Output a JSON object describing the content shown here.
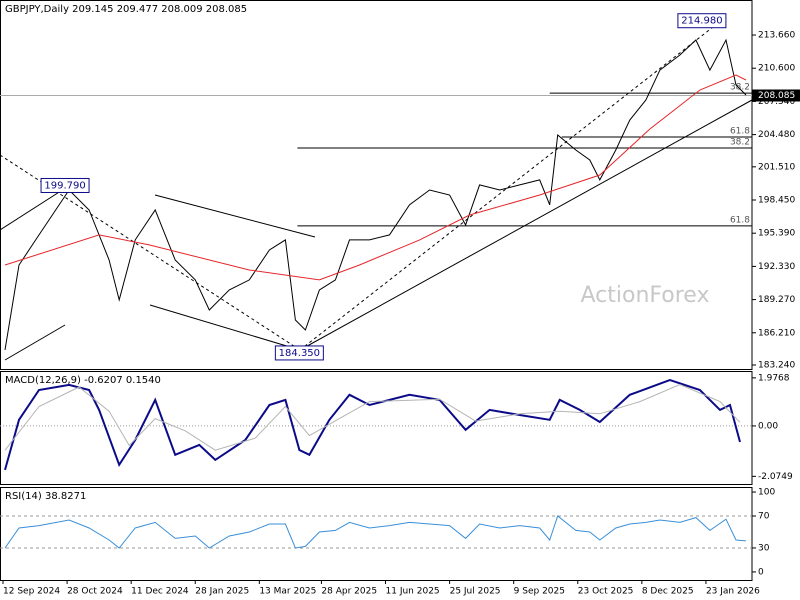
{
  "chart_data": [
    {
      "type": "line",
      "title": "GBPJPY,Daily 209.145 209.477 208.009 208.085",
      "watermark": "ActionForex",
      "xlim": [
        0,
        374
      ],
      "xticks": [
        {
          "value": 0,
          "label": "12 Sep 2024"
        },
        {
          "value": 32,
          "label": "28 Oct 2024"
        },
        {
          "value": 64,
          "label": "11 Dec 2024"
        },
        {
          "value": 96,
          "label": "28 Jan 2025"
        },
        {
          "value": 128,
          "label": "13 Mar 2025"
        },
        {
          "value": 159,
          "label": "28 Apr 2025"
        },
        {
          "value": 191,
          "label": "11 Jun 2025"
        },
        {
          "value": 223,
          "label": "25 Jul 2025"
        },
        {
          "value": 255,
          "label": "9 Sep 2025"
        },
        {
          "value": 287,
          "label": "23 Oct 2025"
        },
        {
          "value": 319,
          "label": "8 Dec 2025"
        },
        {
          "value": 351,
          "label": "23 Jan 2026"
        }
      ],
      "ylim": [
        182.87,
        216.89
      ],
      "yticks": [
        {
          "value": 213.66,
          "label": "213.660"
        },
        {
          "value": 210.6,
          "label": "210.600"
        },
        {
          "value": 207.54,
          "label": "207.540"
        },
        {
          "value": 204.48,
          "label": "204.480"
        },
        {
          "value": 201.51,
          "label": "201.510"
        },
        {
          "value": 198.45,
          "label": "198.450"
        },
        {
          "value": 195.39,
          "label": "195.390"
        },
        {
          "value": 192.33,
          "label": "192.330"
        },
        {
          "value": 189.27,
          "label": "189.270"
        },
        {
          "value": 186.21,
          "label": "186.210"
        },
        {
          "value": 183.24,
          "label": "183.240"
        }
      ],
      "last": {
        "value": 208.085,
        "label": "208.085"
      },
      "series": [
        {
          "name": "GBPJPY",
          "color": "#000000",
          "x": [
            1,
            8,
            18,
            33,
            43,
            53,
            58,
            66,
            76,
            86,
            96,
            103,
            113,
            123,
            133,
            141,
            146,
            151,
            158,
            166,
            173,
            183,
            193,
            203,
            213,
            223,
            231,
            238,
            248,
            258,
            268,
            273,
            277,
            286,
            293,
            298,
            306,
            313,
            321,
            328,
            338,
            346,
            353,
            361,
            366,
            371
          ],
          "values": [
            184.63,
            192.46,
            195.23,
            199.37,
            197.53,
            192.92,
            189.24,
            194.77,
            197.53,
            192.92,
            191.08,
            188.31,
            190.16,
            191.08,
            193.84,
            194.77,
            187.39,
            186.47,
            190.16,
            191.08,
            194.77,
            194.77,
            195.23,
            198.01,
            199.37,
            198.91,
            196.15,
            199.84,
            199.37,
            199.84,
            200.3,
            198.01,
            204.44,
            203.06,
            202.14,
            200.3,
            203.06,
            205.83,
            207.67,
            210.43,
            211.82,
            213.2,
            210.43,
            213.2,
            209.05,
            208.13
          ]
        },
        {
          "name": "MA",
          "color": "#e5262b",
          "x": [
            1,
            48,
            73,
            123,
            158,
            178,
            208,
            233,
            268,
            298,
            323,
            348,
            366,
            371
          ],
          "values": [
            192.46,
            195.23,
            194.31,
            192.0,
            191.08,
            192.46,
            194.77,
            197.07,
            198.91,
            200.76,
            205.0,
            208.59,
            209.97,
            209.51
          ]
        }
      ],
      "annotations": [
        {
          "value": 214.98,
          "label": "214.980",
          "x": 338
        },
        {
          "value": 199.79,
          "label": "199.790",
          "x": 20
        },
        {
          "value": 184.35,
          "label": "184.350",
          "x": 137
        }
      ],
      "fib_levels": [
        {
          "value": 208.31,
          "label": "38.2",
          "x": 273
        },
        {
          "value": 204.26,
          "label": "61.8",
          "x": 279
        },
        {
          "value": 203.24,
          "label": "38.2",
          "x": 147
        },
        {
          "value": 196.06,
          "label": "61.8",
          "x": 147
        }
      ]
    },
    {
      "type": "line",
      "title": "MACD(12,26,9) -0.6207 0.1540",
      "xlim": [
        0,
        374
      ],
      "ylim": [
        -2.39,
        2.26
      ],
      "yticks": [
        1.9768,
        {
          "value": 0,
          "label": "0.00"
        },
        -2.0749
      ],
      "levels": [
        0
      ],
      "series": [
        {
          "name": "MACD",
          "color": "#0b0b8a",
          "x": [
            1,
            8,
            18,
            33,
            43,
            48,
            58,
            66,
            76,
            86,
            98,
            106,
            121,
            133,
            141,
            148,
            153,
            163,
            173,
            183,
            203,
            218,
            231,
            243,
            258,
            273,
            278,
            288,
            298,
            313,
            333,
            348,
            358,
            363,
            368
          ],
          "values": [
            -1.81,
            0.25,
            1.48,
            1.69,
            1.48,
            0.66,
            -1.6,
            -0.58,
            1.07,
            -1.19,
            -0.78,
            -1.4,
            -0.58,
            0.86,
            1.07,
            -0.99,
            -1.19,
            0.25,
            1.28,
            0.86,
            1.28,
            1.07,
            -0.16,
            0.66,
            0.45,
            0.25,
            1.07,
            0.66,
            0.16,
            1.28,
            1.89,
            1.48,
            0.66,
            0.86,
            -0.66
          ]
        },
        {
          "name": "Signal",
          "color": "#b4b4b4",
          "x": [
            1,
            18,
            38,
            53,
            63,
            76,
            91,
            106,
            126,
            141,
            153,
            168,
            183,
            218,
            236,
            258,
            278,
            298,
            318,
            338,
            358,
            368
          ],
          "values": [
            -1.0,
            0.8,
            1.6,
            0.6,
            -0.8,
            0.3,
            -0.2,
            -1.0,
            -0.5,
            0.8,
            -0.4,
            0.3,
            1.0,
            1.1,
            0.2,
            0.5,
            0.6,
            0.5,
            1.0,
            1.7,
            1.0,
            0.15
          ]
        }
      ]
    },
    {
      "type": "line",
      "title": "RSI(14) 38.8271",
      "xlim": [
        0,
        374
      ],
      "ylim": [
        -10.1,
        106.3
      ],
      "yticks": [
        100,
        70,
        30,
        0
      ],
      "levels": [
        70,
        30
      ],
      "series": [
        {
          "name": "RSI",
          "color": "#3a8fd8",
          "x": [
            1,
            8,
            18,
            33,
            43,
            53,
            58,
            66,
            76,
            86,
            96,
            103,
            113,
            123,
            133,
            141,
            146,
            151,
            158,
            166,
            173,
            183,
            193,
            203,
            213,
            223,
            231,
            238,
            248,
            258,
            268,
            273,
            277,
            286,
            293,
            298,
            306,
            313,
            321,
            328,
            338,
            346,
            353,
            361,
            366,
            371
          ],
          "values": [
            30,
            55,
            58,
            65,
            55,
            40,
            30,
            55,
            62,
            42,
            45,
            30,
            45,
            50,
            60,
            60,
            30,
            32,
            50,
            52,
            62,
            55,
            58,
            62,
            60,
            58,
            42,
            60,
            55,
            58,
            55,
            40,
            70,
            52,
            50,
            40,
            55,
            60,
            62,
            65,
            62,
            68,
            52,
            66,
            40,
            38.83
          ]
        }
      ]
    }
  ]
}
